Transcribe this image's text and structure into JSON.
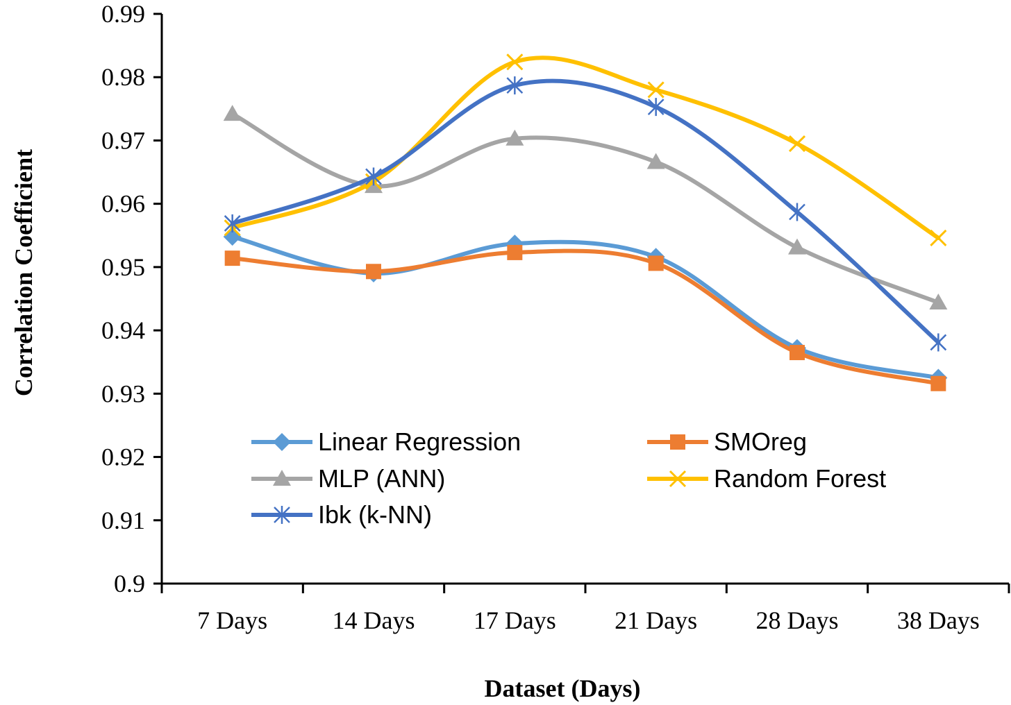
{
  "chart_data": {
    "type": "line",
    "title": "",
    "xlabel": "Dataset (Days)",
    "ylabel": "Correlation Coefficient",
    "categories": [
      "7 Days",
      "14 Days",
      "17 Days",
      "21 Days",
      "28 Days",
      "38 Days"
    ],
    "ylim": [
      0.9,
      0.99
    ],
    "yticks": [
      "0.9",
      "0.91",
      "0.92",
      "0.93",
      "0.94",
      "0.95",
      "0.96",
      "0.97",
      "0.98",
      "0.99"
    ],
    "grid": false,
    "smooth": true,
    "legend_position": "bottom-center",
    "series": [
      {
        "name": "Linear Regression",
        "color": "#5B9BD5",
        "marker": "diamond",
        "values": [
          0.9548,
          0.949,
          0.9537,
          0.9516,
          0.9372,
          0.9325
        ]
      },
      {
        "name": "SMOreg",
        "color": "#ED7D31",
        "marker": "square",
        "values": [
          0.9514,
          0.9493,
          0.9523,
          0.9506,
          0.9365,
          0.9316
        ]
      },
      {
        "name": "MLP (ANN)",
        "color": "#A5A5A5",
        "marker": "triangle",
        "values": [
          0.9742,
          0.9628,
          0.9703,
          0.9666,
          0.9531,
          0.9444
        ]
      },
      {
        "name": "Random Forest",
        "color": "#FFC000",
        "marker": "x",
        "values": [
          0.9562,
          0.9635,
          0.9824,
          0.978,
          0.9695,
          0.9546
        ]
      },
      {
        "name": "Ibk (k-NN)",
        "color": "#4472C4",
        "marker": "star",
        "values": [
          0.9569,
          0.9643,
          0.9787,
          0.9753,
          0.9587,
          0.9381
        ]
      }
    ]
  }
}
